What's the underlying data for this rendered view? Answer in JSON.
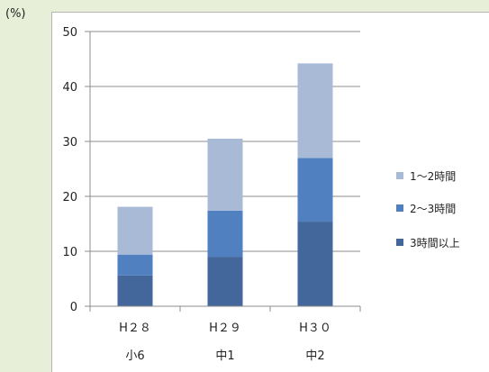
{
  "chart_data": {
    "type": "bar",
    "stacked": true,
    "unit_label": "(%)",
    "categories": [
      "H２８",
      "H２９",
      "H３０"
    ],
    "category_sublabels": [
      "小6",
      "中1",
      "中2"
    ],
    "ylim": [
      0,
      50
    ],
    "yticks": [
      0,
      10,
      20,
      30,
      40,
      50
    ],
    "grid": true,
    "legend_position": "right",
    "series": [
      {
        "name": "3時間以上",
        "values": [
          5.6,
          9.0,
          15.4
        ],
        "color": "#43679a"
      },
      {
        "name": "2～3時間",
        "values": [
          3.8,
          8.4,
          11.6
        ],
        "color": "#5180c0"
      },
      {
        "name": "1～2時間",
        "values": [
          8.7,
          13.1,
          17.2
        ],
        "color": "#a9bad7"
      }
    ],
    "legend_order": [
      2,
      1,
      0
    ]
  }
}
